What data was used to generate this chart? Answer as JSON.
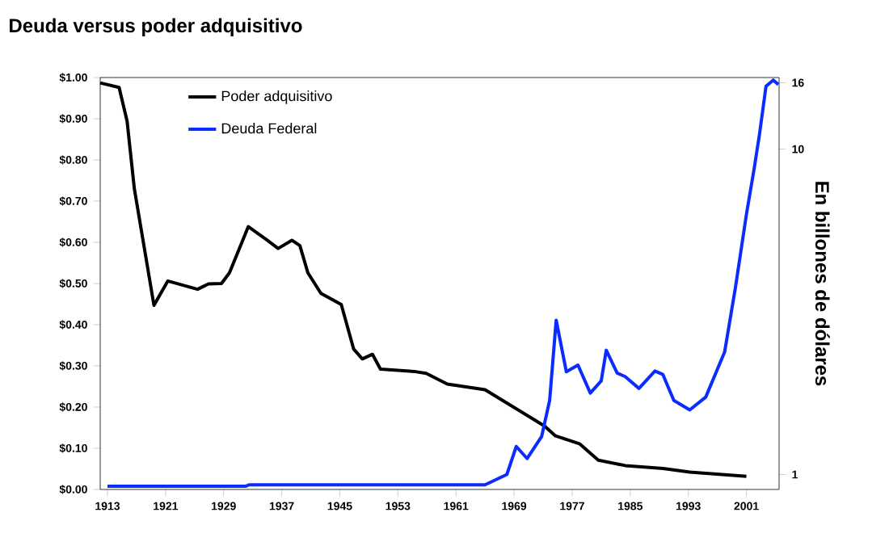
{
  "chart_data": {
    "type": "line",
    "title": "Deuda versus poder adquisitivo",
    "y2label": "En billones de dólares",
    "xlim": [
      1912,
      2005.5
    ],
    "xticks": [
      1913,
      1921,
      1929,
      1937,
      1945,
      1953,
      1961,
      1969,
      1977,
      1985,
      1993,
      2001
    ],
    "ylim": [
      0,
      1
    ],
    "yticks": [
      {
        "value": 0,
        "label": "$0.00"
      },
      {
        "value": 0.1,
        "label": "$0.10"
      },
      {
        "value": 0.2,
        "label": "$0.20"
      },
      {
        "value": 0.3,
        "label": "$0.30"
      },
      {
        "value": 0.4,
        "label": "$0.40"
      },
      {
        "value": 0.5,
        "label": "$0.50"
      },
      {
        "value": 0.6,
        "label": "$0.60"
      },
      {
        "value": 0.7,
        "label": "$0.70"
      },
      {
        "value": 0.8,
        "label": "$0.80"
      },
      {
        "value": 0.9,
        "label": "$0.90"
      },
      {
        "value": 1,
        "label": "$1.00"
      }
    ],
    "y2lim": [
      0.9,
      16.6
    ],
    "y2ticks": [
      1,
      10,
      16
    ],
    "log": "y2",
    "legend": "top left",
    "grid": false,
    "marker": "none",
    "line_style": "solid",
    "series": [
      {
        "name": "Poder adquisitivo",
        "color": "#000000",
        "x": [
          1912.0,
          1914.6,
          1915.7,
          1916.7,
          1919.4,
          1921.3,
          1925.4,
          1926.9,
          1928.7,
          1929.8,
          1932.4,
          1935.0,
          1936.5,
          1938.4,
          1939.5,
          1940.6,
          1942.4,
          1945.2,
          1946.9,
          1948.1,
          1949.5,
          1950.6,
          1955.4,
          1956.9,
          1959.8,
          1965.0,
          1973.2,
          1974.7,
          1978.0,
          1980.6,
          1984.3,
          1989.5,
          1993.2,
          2001.0
        ],
        "values": [
          0.987,
          0.976,
          0.894,
          0.73,
          0.447,
          0.506,
          0.486,
          0.499,
          0.5,
          0.526,
          0.638,
          0.605,
          0.585,
          0.605,
          0.592,
          0.526,
          0.476,
          0.449,
          0.341,
          0.317,
          0.328,
          0.292,
          0.286,
          0.282,
          0.256,
          0.242,
          0.154,
          0.13,
          0.111,
          0.071,
          0.058,
          0.051,
          0.042,
          0.032
        ]
      },
      {
        "name": "Deuda Federal",
        "color": "#0a2cff",
        "axis": "y2",
        "x": [
          1913.0,
          1932.0,
          1932.5,
          1965.0,
          1968.0,
          1969.3,
          1970.8,
          1972.8,
          1973.9,
          1974.8,
          1976.2,
          1977.8,
          1979.5,
          1981.0,
          1981.7,
          1983.2,
          1984.3,
          1986.2,
          1988.4,
          1989.5,
          1991.0,
          1993.2,
          1995.4,
          1998.0,
          1999.5,
          2001.0,
          2002.1,
          2002.8,
          2003.7,
          2004.7,
          2005.4
        ],
        "values": [
          0.92,
          0.92,
          0.93,
          0.93,
          1.0,
          1.22,
          1.12,
          1.31,
          1.69,
          2.98,
          2.07,
          2.17,
          1.78,
          1.94,
          2.41,
          2.05,
          2.0,
          1.84,
          2.08,
          2.03,
          1.69,
          1.58,
          1.73,
          2.38,
          3.77,
          6.3,
          8.8,
          11.1,
          15.6,
          16.3,
          15.8
        ]
      }
    ]
  }
}
